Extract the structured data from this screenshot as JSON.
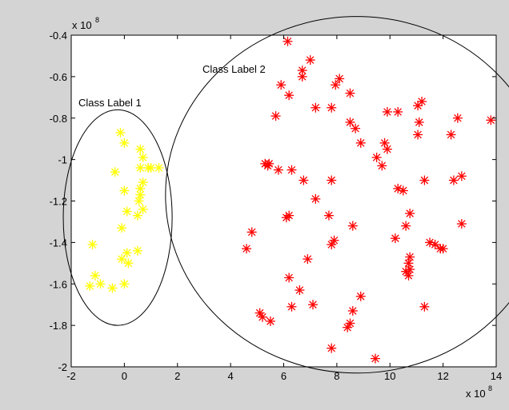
{
  "chart_data": {
    "type": "scatter",
    "title": "",
    "xlabel": "",
    "ylabel": "",
    "xlim": [
      -2,
      14
    ],
    "ylim": [
      -2,
      -0.4
    ],
    "x_ticks": [
      -2,
      0,
      2,
      4,
      6,
      8,
      10,
      12,
      14
    ],
    "y_ticks": [
      -2,
      -1.8,
      -1.6,
      -1.4,
      -1.2,
      -1,
      -0.8,
      -0.6,
      -0.4
    ],
    "x_tick_labels": [
      "-2",
      "0",
      "2",
      "4",
      "6",
      "8",
      "10",
      "12",
      "14"
    ],
    "y_tick_labels": [
      "-2",
      "-1.8",
      "-1.6",
      "-1.4",
      "-1.2",
      "-1",
      "-0.8",
      "-0.6",
      "-0.4"
    ],
    "x_multiplier": {
      "base": "x 10",
      "exponent": "8"
    },
    "y_multiplier": {
      "base": "x 10",
      "exponent": "8"
    },
    "grid": false,
    "marker": "asterisk",
    "annotations": [
      {
        "text": "Class Label 1",
        "x": -2.0,
        "y": -0.76
      },
      {
        "text": "Class Label 2",
        "x": 2.9,
        "y": -0.58
      }
    ],
    "ellipses": [
      {
        "cx": -0.25,
        "cy": -1.28,
        "rx": 2.05,
        "ry": 0.52
      },
      {
        "cx": 8.75,
        "cy": -1.17,
        "rx": 7.2,
        "ry": 0.86
      }
    ],
    "series": [
      {
        "color": "#ffff00",
        "points": [
          [
            -0.15,
            -0.87
          ],
          [
            0.0,
            -0.92
          ],
          [
            0.6,
            -0.95
          ],
          [
            0.7,
            -0.99
          ],
          [
            0.9,
            -1.04
          ],
          [
            1.0,
            -1.04
          ],
          [
            1.3,
            -1.04
          ],
          [
            0.6,
            -1.04
          ],
          [
            -0.35,
            -1.06
          ],
          [
            0.7,
            -1.11
          ],
          [
            0.6,
            -1.14
          ],
          [
            0.0,
            -1.15
          ],
          [
            0.6,
            -1.17
          ],
          [
            0.55,
            -1.2
          ],
          [
            0.7,
            -1.24
          ],
          [
            0.1,
            -1.25
          ],
          [
            0.5,
            -1.27
          ],
          [
            -0.1,
            -1.33
          ],
          [
            -1.2,
            -1.41
          ],
          [
            0.1,
            -1.45
          ],
          [
            0.5,
            -1.44
          ],
          [
            -0.1,
            -1.48
          ],
          [
            0.15,
            -1.5
          ],
          [
            -1.1,
            -1.56
          ],
          [
            -1.3,
            -1.61
          ],
          [
            -0.9,
            -1.6
          ],
          [
            -0.45,
            -1.62
          ],
          [
            0.0,
            -1.6
          ]
        ]
      },
      {
        "color": "#ff0000",
        "points": [
          [
            6.15,
            -0.43
          ],
          [
            7.0,
            -0.52
          ],
          [
            6.7,
            -0.57
          ],
          [
            6.7,
            -0.6
          ],
          [
            8.1,
            -0.61
          ],
          [
            7.95,
            -0.64
          ],
          [
            5.9,
            -0.64
          ],
          [
            6.2,
            -0.69
          ],
          [
            8.5,
            -0.68
          ],
          [
            11.2,
            -0.72
          ],
          [
            11.05,
            -0.74
          ],
          [
            7.2,
            -0.75
          ],
          [
            7.8,
            -0.75
          ],
          [
            9.9,
            -0.77
          ],
          [
            10.3,
            -0.77
          ],
          [
            5.7,
            -0.79
          ],
          [
            12.55,
            -0.8
          ],
          [
            13.8,
            -0.81
          ],
          [
            8.5,
            -0.82
          ],
          [
            11.1,
            -0.82
          ],
          [
            8.7,
            -0.85
          ],
          [
            12.3,
            -0.88
          ],
          [
            11.05,
            -0.88
          ],
          [
            9.8,
            -0.92
          ],
          [
            8.9,
            -0.92
          ],
          [
            9.9,
            -0.95
          ],
          [
            9.5,
            -0.99
          ],
          [
            5.3,
            -1.02
          ],
          [
            5.45,
            -1.02
          ],
          [
            5.4,
            -1.03
          ],
          [
            9.7,
            -1.03
          ],
          [
            5.8,
            -1.05
          ],
          [
            6.3,
            -1.05
          ],
          [
            12.7,
            -1.08
          ],
          [
            12.4,
            -1.1
          ],
          [
            11.3,
            -1.1
          ],
          [
            6.75,
            -1.1
          ],
          [
            7.8,
            -1.1
          ],
          [
            10.3,
            -1.14
          ],
          [
            10.5,
            -1.15
          ],
          [
            7.2,
            -1.19
          ],
          [
            10.75,
            -1.26
          ],
          [
            6.2,
            -1.27
          ],
          [
            6.1,
            -1.28
          ],
          [
            7.7,
            -1.27
          ],
          [
            10.6,
            -1.32
          ],
          [
            12.7,
            -1.31
          ],
          [
            8.6,
            -1.32
          ],
          [
            4.8,
            -1.35
          ],
          [
            7.9,
            -1.39
          ],
          [
            7.8,
            -1.41
          ],
          [
            10.2,
            -1.38
          ],
          [
            11.5,
            -1.4
          ],
          [
            11.7,
            -1.41
          ],
          [
            11.9,
            -1.43
          ],
          [
            12.0,
            -1.43
          ],
          [
            4.6,
            -1.43
          ],
          [
            10.75,
            -1.47
          ],
          [
            10.7,
            -1.5
          ],
          [
            6.9,
            -1.48
          ],
          [
            10.75,
            -1.53
          ],
          [
            10.6,
            -1.54
          ],
          [
            10.7,
            -1.56
          ],
          [
            6.2,
            -1.57
          ],
          [
            6.6,
            -1.63
          ],
          [
            8.9,
            -1.66
          ],
          [
            6.3,
            -1.71
          ],
          [
            7.1,
            -1.7
          ],
          [
            11.3,
            -1.71
          ],
          [
            8.6,
            -1.73
          ],
          [
            5.1,
            -1.74
          ],
          [
            5.2,
            -1.76
          ],
          [
            5.5,
            -1.78
          ],
          [
            8.5,
            -1.79
          ],
          [
            8.4,
            -1.81
          ],
          [
            7.8,
            -1.91
          ],
          [
            9.45,
            -1.96
          ]
        ]
      }
    ]
  }
}
